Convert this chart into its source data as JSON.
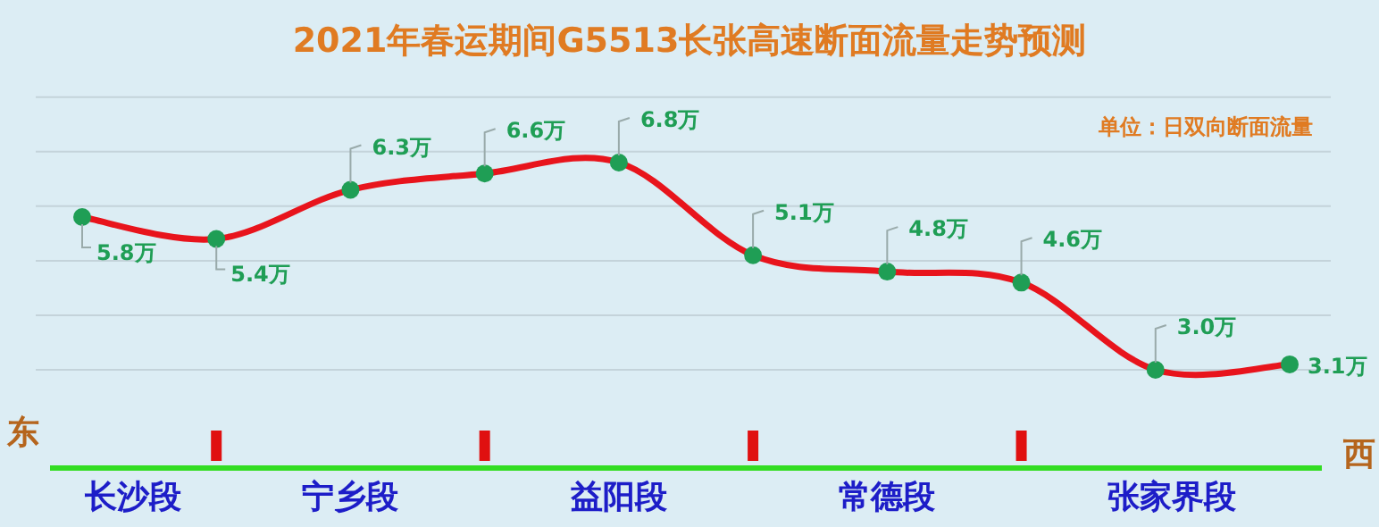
{
  "chart_data": {
    "type": "line",
    "title": "2021年春运期间G5513长张高速断面流量走势预测",
    "categories": [
      null,
      null,
      null,
      null,
      null,
      null,
      null,
      null,
      null,
      null
    ],
    "series": [
      {
        "color": "#e8141c",
        "values": [
          5.8,
          5.4,
          6.3,
          6.6,
          6.8,
          5.1,
          4.8,
          4.6,
          3.0,
          3.1
        ],
        "value_labels": [
          "5.8万",
          "5.4万",
          "6.3万",
          "6.6万",
          "6.8万",
          "5.1万",
          "4.8万",
          "4.6万",
          "3.0万",
          "3.1万"
        ]
      }
    ],
    "yticks": [
      {
        "value": 3,
        "label": null
      },
      {
        "value": 4,
        "label": null
      },
      {
        "value": 5,
        "label": null
      },
      {
        "value": 6,
        "label": null
      },
      {
        "value": 7,
        "label": null
      },
      {
        "value": 8,
        "label": null
      }
    ],
    "grid": "y",
    "marker": "circle",
    "line_style": "solid",
    "annotations": [
      "单位：日双向断面流量",
      "东",
      "西",
      "长沙段",
      "宁乡段",
      "益阳段",
      "常德段",
      "张家界段"
    ]
  }
}
